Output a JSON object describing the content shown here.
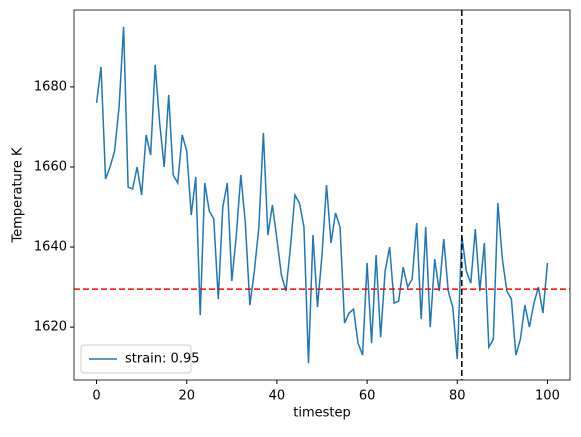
{
  "chart_data": {
    "type": "line",
    "xlabel": "timestep",
    "ylabel": "Temperature K",
    "x": [
      0,
      1,
      2,
      3,
      4,
      5,
      6,
      7,
      8,
      9,
      10,
      11,
      12,
      13,
      14,
      15,
      16,
      17,
      18,
      19,
      20,
      21,
      22,
      23,
      24,
      25,
      26,
      27,
      28,
      29,
      30,
      31,
      32,
      33,
      34,
      35,
      36,
      37,
      38,
      39,
      40,
      41,
      42,
      43,
      44,
      45,
      46,
      47,
      48,
      49,
      50,
      51,
      52,
      53,
      54,
      55,
      56,
      57,
      58,
      59,
      60,
      61,
      62,
      63,
      64,
      65,
      66,
      67,
      68,
      69,
      70,
      71,
      72,
      73,
      74,
      75,
      76,
      77,
      78,
      79,
      80,
      81,
      82,
      83,
      84,
      85,
      86,
      87,
      88,
      89,
      90,
      91,
      92,
      93,
      94,
      95,
      96,
      97,
      98,
      99,
      100
    ],
    "series": [
      {
        "name": "strain: 0.95",
        "color": "#1f77b4",
        "values": [
          1676,
          1685,
          1657,
          1660,
          1664,
          1675,
          1695,
          1655,
          1654.5,
          1660,
          1653,
          1668,
          1663,
          1685.5,
          1671,
          1660,
          1678,
          1658,
          1656,
          1668,
          1664,
          1648,
          1657.5,
          1623,
          1656,
          1649,
          1647,
          1627,
          1650,
          1656,
          1631.5,
          1643,
          1658,
          1646,
          1625.5,
          1634,
          1645,
          1668.5,
          1643,
          1650.5,
          1642,
          1633,
          1629,
          1640,
          1653,
          1651,
          1645,
          1611,
          1643,
          1625,
          1638,
          1655.5,
          1641,
          1648.5,
          1645,
          1621,
          1623.5,
          1624.5,
          1616,
          1613,
          1636,
          1616,
          1638,
          1617.5,
          1634,
          1640,
          1626,
          1626.5,
          1635,
          1630,
          1632,
          1646,
          1622,
          1645,
          1620,
          1637,
          1629,
          1642,
          1629,
          1625,
          1612,
          1643,
          1634,
          1631,
          1644.5,
          1629,
          1641,
          1615,
          1617,
          1651,
          1637,
          1629,
          1627,
          1613,
          1617,
          1625.5,
          1620,
          1626,
          1630,
          1623.5,
          1636
        ]
      }
    ],
    "hline": {
      "value": 1629.5,
      "color": "#ff0000"
    },
    "vline": {
      "value": 81,
      "color": "#000000"
    },
    "xlim": [
      -5,
      105
    ],
    "xticks": [
      0,
      20,
      40,
      60,
      80,
      100
    ],
    "ylim": [
      1606.8,
      1699.2
    ],
    "yticks": [
      1620,
      1640,
      1660,
      1680
    ],
    "legend": "lower left"
  }
}
